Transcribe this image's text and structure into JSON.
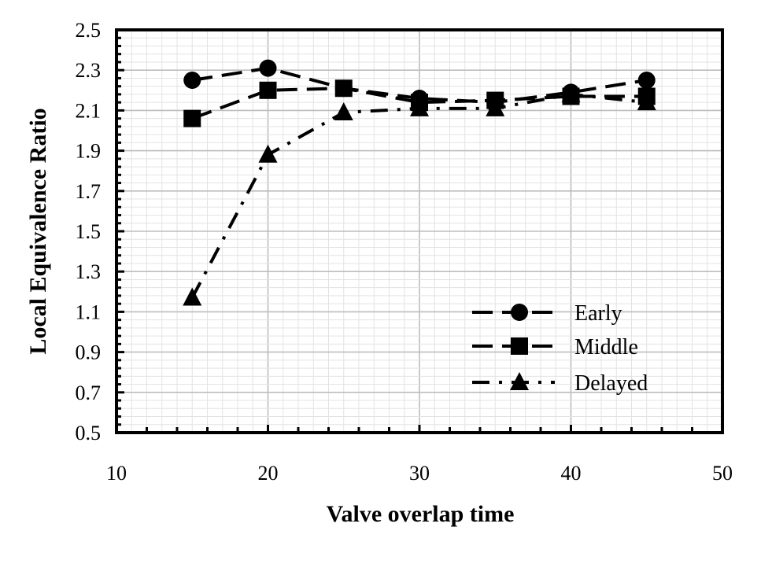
{
  "chart_data": {
    "type": "line",
    "title": "",
    "xlabel": "Valve overlap time",
    "ylabel": "Local Equivalence Ratio",
    "xlim": [
      10,
      50
    ],
    "ylim": [
      0.5,
      2.5
    ],
    "x_ticks": [
      "10",
      "20",
      "30",
      "40",
      "50"
    ],
    "y_ticks": [
      "0.5",
      "0.7",
      "0.9",
      "1.1",
      "1.3",
      "1.5",
      "1.7",
      "1.9",
      "2.1",
      "2.3",
      "2.5"
    ],
    "grid": true,
    "legend_position": "bottom-right",
    "x": [
      15,
      20,
      25,
      30,
      35,
      40,
      45
    ],
    "series": [
      {
        "name": "Early",
        "marker": "circle",
        "line_style": "dashed",
        "color": "#000000",
        "values": [
          2.25,
          2.31,
          2.21,
          2.16,
          2.14,
          2.19,
          2.25
        ]
      },
      {
        "name": "Middle",
        "marker": "square",
        "line_style": "dashed",
        "color": "#000000",
        "values": [
          2.06,
          2.2,
          2.21,
          2.14,
          2.15,
          2.17,
          2.17
        ]
      },
      {
        "name": "Delayed",
        "marker": "triangle",
        "line_style": "dash-dot",
        "color": "#000000",
        "values": [
          1.17,
          1.88,
          2.09,
          2.11,
          2.11,
          2.18,
          2.14
        ]
      }
    ]
  }
}
